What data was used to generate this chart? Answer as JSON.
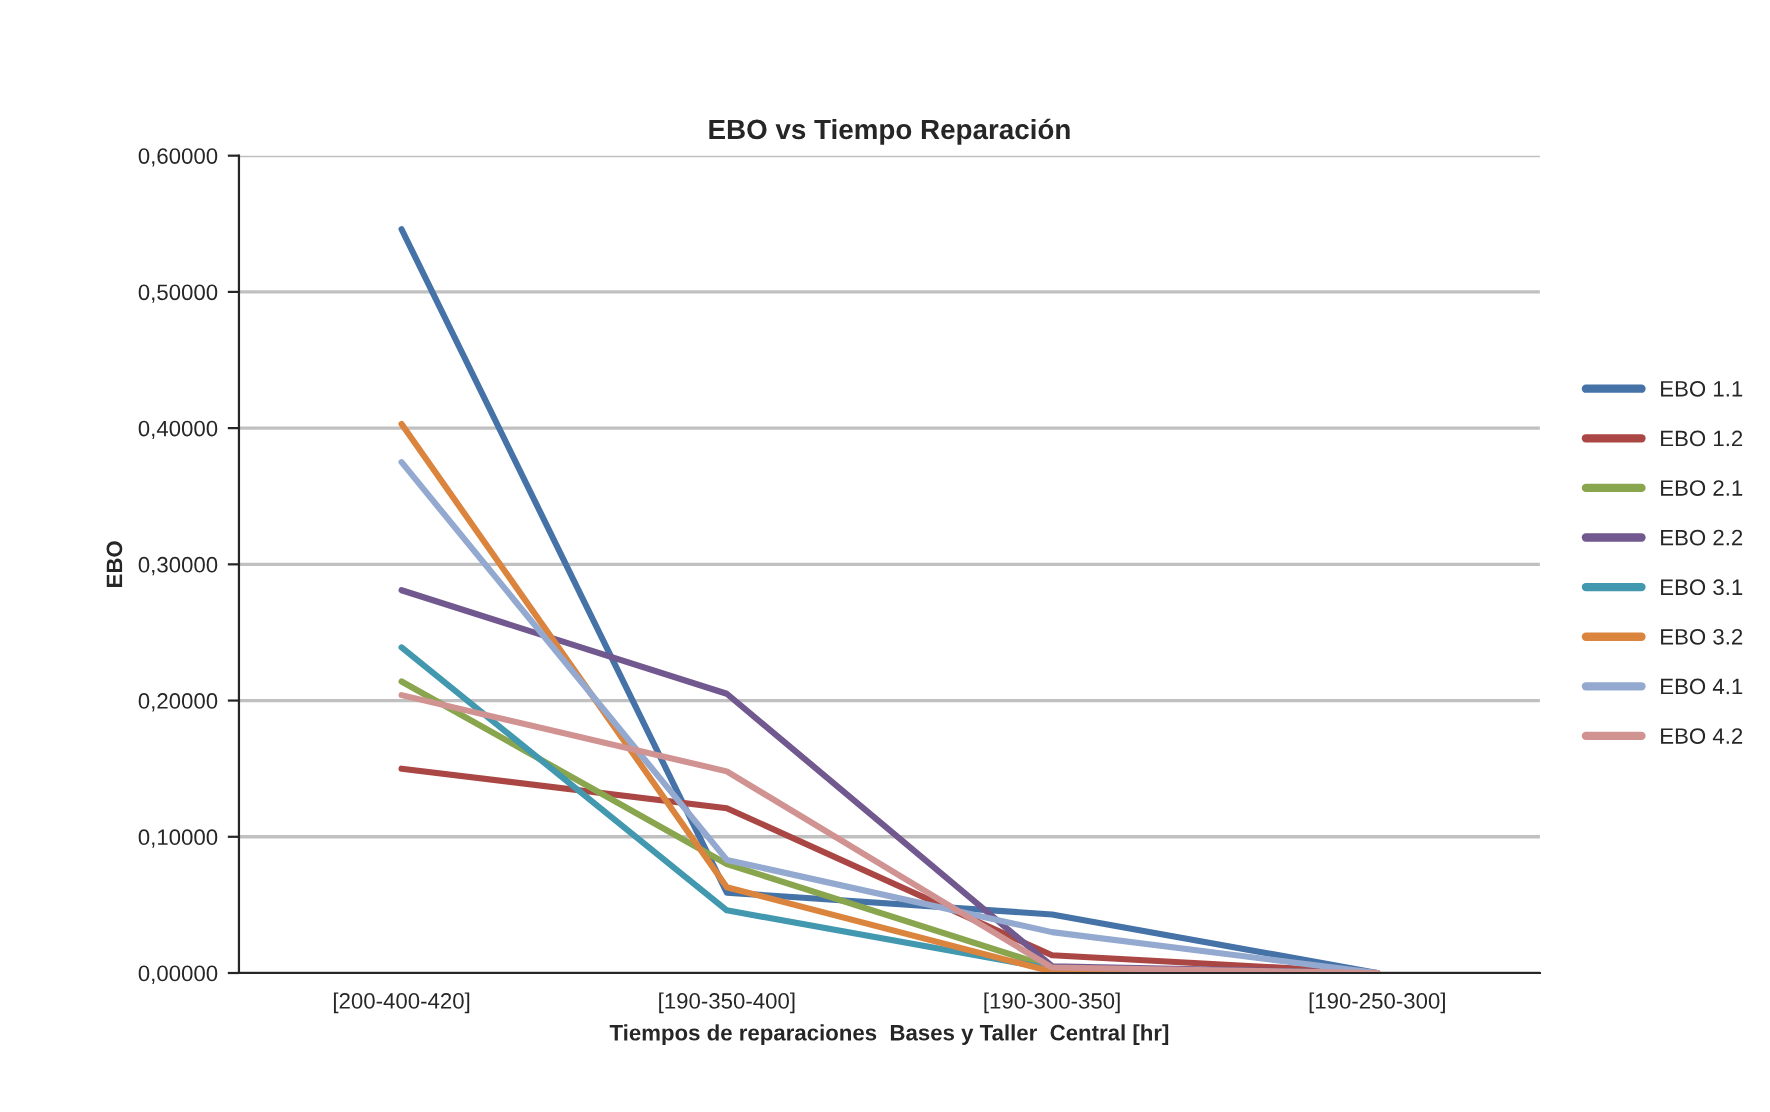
{
  "chart_data": {
    "type": "line",
    "title": "EBO vs Tiempo Reparación",
    "xlabel": "Tiempos de reparaciones  Bases y Taller  Central [hr]",
    "ylabel": "EBO",
    "categories": [
      "[200-400-420]",
      "[190-350-400]",
      "[190-300-350]",
      "[190-250-300]"
    ],
    "series": [
      {
        "name": "EBO 1.1",
        "color": "#4572a7",
        "values": [
          0.546,
          0.059,
          0.043,
          0.0
        ]
      },
      {
        "name": "EBO 1.2",
        "color": "#aa4643",
        "values": [
          0.15,
          0.121,
          0.013,
          0.0
        ]
      },
      {
        "name": "EBO 2.1",
        "color": "#89a54e",
        "values": [
          0.214,
          0.08,
          0.004,
          0.0
        ]
      },
      {
        "name": "EBO 2.2",
        "color": "#71588f",
        "values": [
          0.281,
          0.205,
          0.005,
          0.0
        ]
      },
      {
        "name": "EBO 3.1",
        "color": "#4198af",
        "values": [
          0.239,
          0.046,
          0.003,
          0.0
        ]
      },
      {
        "name": "EBO 3.2",
        "color": "#db843d",
        "values": [
          0.403,
          0.063,
          0.001,
          0.0
        ]
      },
      {
        "name": "EBO 4.1",
        "color": "#93a9cf",
        "values": [
          0.375,
          0.083,
          0.03,
          0.0
        ]
      },
      {
        "name": "EBO 4.2",
        "color": "#d19392",
        "values": [
          0.204,
          0.148,
          0.004,
          0.0
        ]
      }
    ],
    "ylim": [
      0,
      0.6
    ],
    "yticks": [
      {
        "value": 0,
        "label": "0,00000"
      },
      {
        "value": 0.1,
        "label": "0,10000"
      },
      {
        "value": 0.2,
        "label": "0,20000"
      },
      {
        "value": 0.3,
        "label": "0,30000"
      },
      {
        "value": 0.4,
        "label": "0,40000"
      },
      {
        "value": 0.5,
        "label": "0,50000"
      },
      {
        "value": 0.6,
        "label": "0,60000"
      }
    ],
    "grid": "y",
    "legend": "right",
    "marker": "none",
    "line_style": "solid"
  }
}
